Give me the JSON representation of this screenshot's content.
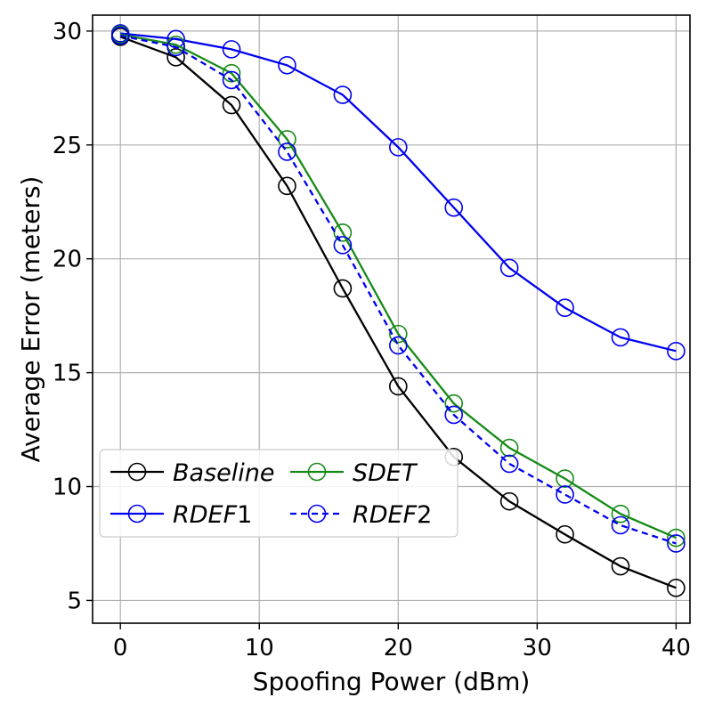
{
  "chart_data": {
    "type": "line",
    "title": "",
    "xlabel": "Spoofing Power (dBm)",
    "ylabel": "Average Error (meters)",
    "x": [
      0,
      4,
      8,
      12,
      16,
      20,
      24,
      28,
      32,
      36,
      40
    ],
    "xlim": [
      -2,
      41
    ],
    "ylim": [
      4,
      30.7
    ],
    "xticks": [
      0,
      10,
      20,
      30,
      40
    ],
    "yticks": [
      5,
      10,
      15,
      20,
      25,
      30
    ],
    "grid": true,
    "legend_position": "lower-left",
    "legend_columns": 2,
    "series": [
      {
        "name": "Baseline",
        "color": "#000000",
        "dashed": false,
        "values": [
          29.75,
          28.85,
          26.75,
          23.2,
          18.7,
          14.4,
          11.3,
          9.35,
          7.9,
          6.5,
          5.55
        ]
      },
      {
        "name": "RDEF1",
        "color": "#0000ee",
        "dashed": false,
        "values": [
          29.9,
          29.65,
          29.2,
          28.5,
          27.2,
          24.9,
          22.25,
          19.6,
          17.85,
          16.55,
          15.95
        ]
      },
      {
        "name": "SDET",
        "color": "#168a16",
        "dashed": false,
        "values": [
          29.85,
          29.4,
          28.15,
          25.25,
          21.15,
          16.7,
          13.65,
          11.7,
          10.35,
          8.8,
          7.75
        ]
      },
      {
        "name": "RDEF2",
        "color": "#0000ee",
        "dashed": true,
        "values": [
          29.8,
          29.3,
          27.85,
          24.7,
          20.6,
          16.2,
          13.15,
          11.0,
          9.65,
          8.3,
          7.5
        ]
      }
    ],
    "legend_entries": [
      {
        "series": 0,
        "prefix": "Baseline",
        "suffix": ""
      },
      {
        "series": 2,
        "prefix": "SDET",
        "suffix": ""
      },
      {
        "series": 1,
        "prefix": "RDEF",
        "suffix": "1"
      },
      {
        "series": 3,
        "prefix": "RDEF",
        "suffix": "2"
      }
    ]
  }
}
